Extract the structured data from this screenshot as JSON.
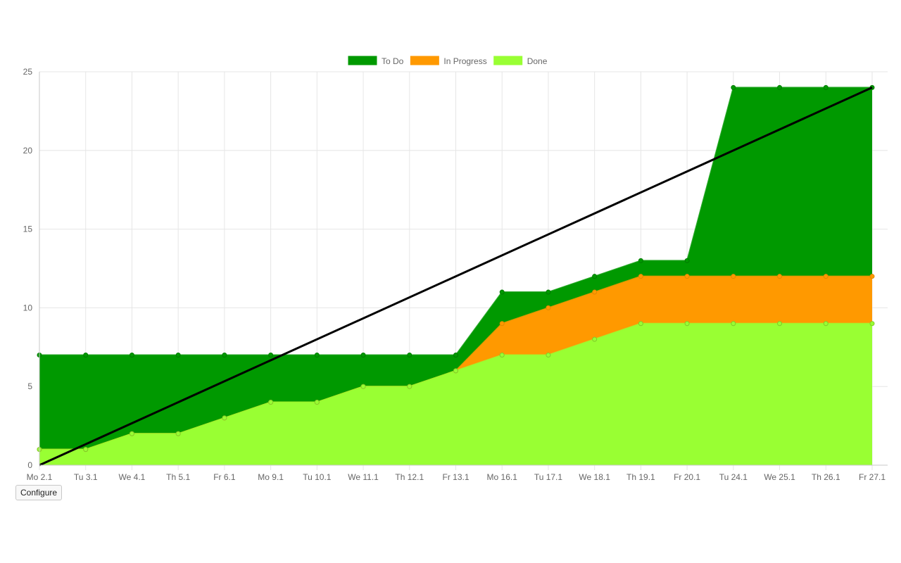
{
  "chart_data": {
    "type": "area",
    "stacked": true,
    "categories": [
      "Mo 2.1",
      "Tu 3.1",
      "We 4.1",
      "Th 5.1",
      "Fr 6.1",
      "Mo 9.1",
      "Tu 10.1",
      "We 11.1",
      "Th 12.1",
      "Fr 13.1",
      "Mo 16.1",
      "Tu 17.1",
      "We 18.1",
      "Th 19.1",
      "Fr 20.1",
      "Tu 24.1",
      "We 25.1",
      "Th 26.1",
      "Fr 27.1"
    ],
    "series": [
      {
        "name": "To Do",
        "color": "#009900",
        "values": [
          6,
          6,
          5,
          5,
          4,
          3,
          3,
          2,
          2,
          1,
          2,
          1,
          1,
          1,
          1,
          12,
          12,
          12,
          12
        ],
        "cumulative": [
          7,
          7,
          7,
          7,
          7,
          7,
          7,
          7,
          7,
          7,
          11,
          11,
          12,
          13,
          13,
          24,
          24,
          24,
          24
        ]
      },
      {
        "name": "In Progress",
        "color": "#ff9900",
        "values": [
          0,
          0,
          0,
          0,
          0,
          0,
          0,
          0,
          0,
          0,
          2,
          3,
          3,
          3,
          3,
          3,
          3,
          3,
          3
        ],
        "cumulative": [
          1,
          1,
          2,
          2,
          3,
          4,
          4,
          5,
          5,
          6,
          9,
          10,
          11,
          12,
          12,
          12,
          12,
          12,
          12
        ]
      },
      {
        "name": "Done",
        "color": "#99ff33",
        "values": [
          1,
          1,
          2,
          2,
          3,
          4,
          4,
          5,
          5,
          6,
          7,
          7,
          8,
          9,
          9,
          9,
          9,
          9,
          9
        ],
        "cumulative": [
          1,
          1,
          2,
          2,
          3,
          4,
          4,
          5,
          5,
          6,
          7,
          7,
          8,
          9,
          9,
          9,
          9,
          9,
          9
        ]
      }
    ],
    "ideal_line": {
      "color": "#000000",
      "from": [
        0,
        0
      ],
      "to": [
        18,
        24
      ]
    },
    "ylim": [
      0,
      25
    ],
    "yticks": [
      0,
      5,
      10,
      15,
      20,
      25
    ],
    "grid": true,
    "legend": "top-center",
    "title": "",
    "xlabel": "",
    "ylabel": ""
  },
  "controls": {
    "configure_label": "Configure"
  }
}
